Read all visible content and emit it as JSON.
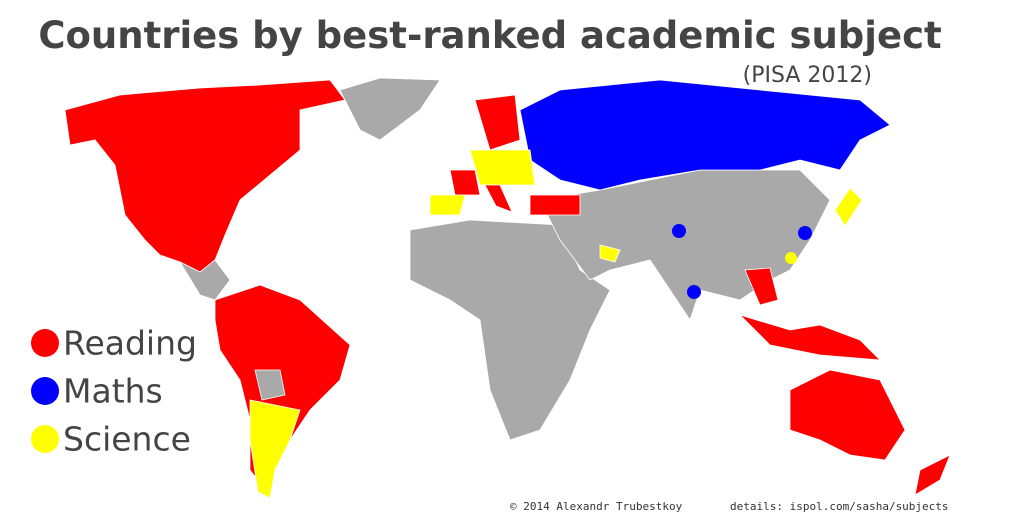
{
  "header": {
    "title": "Countries by best-ranked academic subject",
    "subtitle": "(PISA 2012)"
  },
  "legend": [
    {
      "label": "Reading",
      "color": "#ff0000"
    },
    {
      "label": "Maths",
      "color": "#0000ff"
    },
    {
      "label": "Science",
      "color": "#ffff00"
    }
  ],
  "footer": {
    "credit": "© 2014 Alexandr Trubestkoy",
    "details": "details: ispol.com/sasha/subjects"
  }
}
